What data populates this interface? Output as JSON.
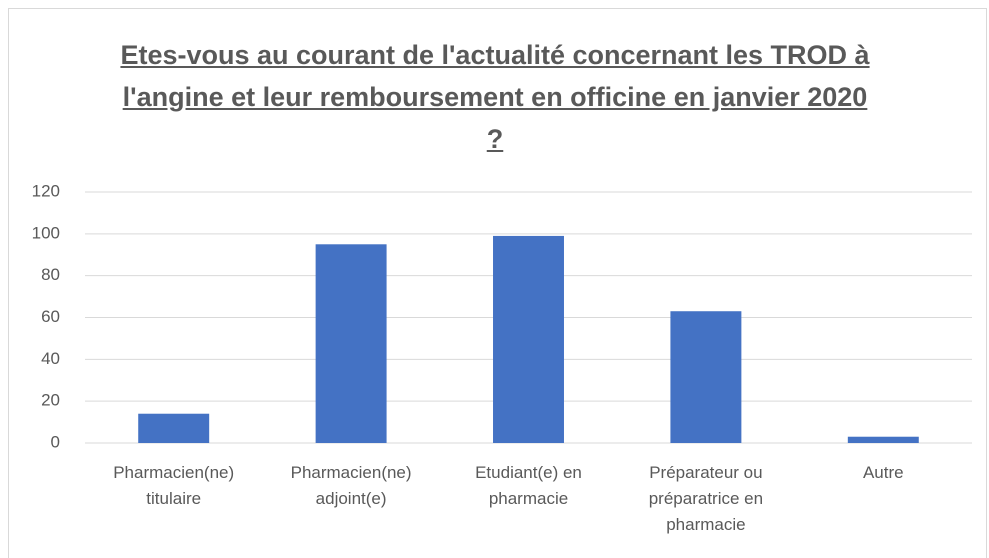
{
  "chart_data": {
    "type": "bar",
    "title": "Etes-vous au courant de l'actualité concernant les TROD à l'angine et leur remboursement en officine en janvier 2020 ?",
    "categories": [
      "Pharmacien(ne) titulaire",
      "Pharmacien(ne) adjoint(e)",
      "Etudiant(e) en pharmacie",
      "Préparateur ou préparatrice en pharmacie",
      "Autre"
    ],
    "values": [
      14,
      95,
      99,
      63,
      3
    ],
    "color": "#4472c4",
    "ylim": [
      0,
      120
    ],
    "yticks": [
      0,
      20,
      40,
      60,
      80,
      100,
      120
    ],
    "grid": true
  }
}
